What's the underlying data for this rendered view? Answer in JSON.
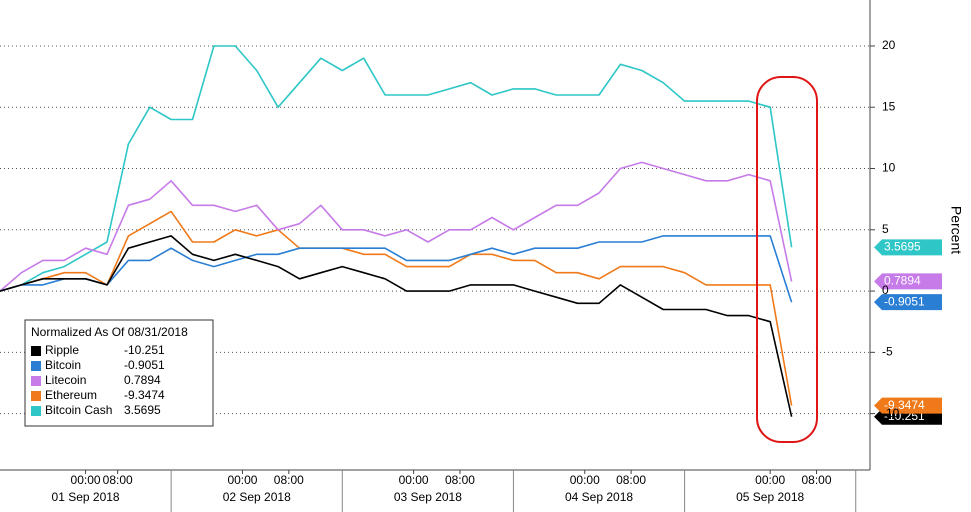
{
  "chart_data": {
    "type": "line",
    "y_label": "Percent",
    "legend_title": "Normalized As Of 08/31/2018",
    "x": [
      0,
      3,
      6,
      9,
      12,
      15,
      18,
      21,
      24,
      27,
      30,
      33,
      36,
      39,
      42,
      45,
      48,
      51,
      54,
      57,
      60,
      63,
      66,
      69,
      72,
      75,
      78,
      81,
      84,
      87,
      90,
      93,
      96,
      99,
      102,
      105,
      108,
      111
    ],
    "xlim": [
      0,
      122
    ],
    "xticks": [
      {
        "value": 12,
        "label": "00:00"
      },
      {
        "value": 16.5,
        "label": "08:00"
      },
      {
        "value": 34,
        "label": "00:00"
      },
      {
        "value": 40.5,
        "label": "08:00"
      },
      {
        "value": 58,
        "label": "00:00"
      },
      {
        "value": 64.5,
        "label": "08:00"
      },
      {
        "value": 82,
        "label": "00:00"
      },
      {
        "value": 88.5,
        "label": "08:00"
      },
      {
        "value": 108,
        "label": "00:00"
      },
      {
        "value": 114.5,
        "label": "08:00"
      }
    ],
    "date_labels": [
      "01 Sep 2018",
      "02 Sep 2018",
      "03 Sep 2018",
      "04 Sep 2018",
      "05 Sep 2018"
    ],
    "ylim": [
      -14.6,
      23.75
    ],
    "yticks": [
      -10,
      -5,
      0,
      5,
      10,
      15,
      20
    ],
    "grid": true,
    "legend": "lower left",
    "series": [
      {
        "name": "Ripple",
        "color": "#000000",
        "values": [
          0,
          0.5,
          1,
          1,
          1,
          0.5,
          3.5,
          4,
          4.5,
          3,
          2.5,
          3,
          2.5,
          2,
          1,
          1.5,
          2,
          1.5,
          1,
          0,
          0,
          0,
          0.5,
          0.5,
          0.5,
          0,
          -0.5,
          -1,
          -1,
          0.5,
          -0.5,
          -1.5,
          -1.5,
          -1.5,
          -2,
          -2,
          -2.5,
          -10.251
        ]
      },
      {
        "name": "Bitcoin",
        "color": "#2a7fd4",
        "values": [
          0,
          0.5,
          0.5,
          1,
          1,
          0.5,
          2.5,
          2.5,
          3.5,
          2.5,
          2,
          2.5,
          3,
          3,
          3.5,
          3.5,
          3.5,
          3.5,
          3.5,
          2.5,
          2.5,
          2.5,
          3,
          3.5,
          3,
          3.5,
          3.5,
          3.5,
          4,
          4,
          4,
          4.5,
          4.5,
          4.5,
          4.5,
          4.5,
          4.5,
          -0.9051
        ]
      },
      {
        "name": "Litecoin",
        "color": "#c77be8",
        "values": [
          0,
          1.5,
          2.5,
          2.5,
          3.5,
          3,
          7,
          7.5,
          9,
          7,
          7,
          6.5,
          7,
          5,
          5.5,
          7,
          5,
          5,
          4.5,
          5,
          4,
          5,
          5,
          6,
          5,
          6,
          7,
          7,
          8,
          10,
          10.5,
          10,
          9.5,
          9,
          9,
          9.5,
          9,
          0.7894
        ]
      },
      {
        "name": "Ethereum",
        "color": "#f07a1a",
        "values": [
          0,
          0.5,
          1,
          1.5,
          1.5,
          0.5,
          4.5,
          5.5,
          6.5,
          4,
          4,
          5,
          4.5,
          5,
          3.5,
          3.5,
          3.5,
          3,
          3,
          2,
          2,
          2,
          3,
          3,
          2.5,
          2.5,
          1.5,
          1.5,
          1,
          2,
          2,
          2,
          1.5,
          0.5,
          0.5,
          0.5,
          0.5,
          -9.3474
        ]
      },
      {
        "name": "Bitcoin Cash",
        "color": "#2ec6c6",
        "values": [
          0,
          0.5,
          1.5,
          2,
          3,
          4,
          12,
          15,
          14,
          14,
          20,
          20,
          18,
          15,
          17,
          19,
          18,
          19,
          16,
          16,
          16,
          16.5,
          17,
          16,
          16.5,
          16.5,
          16,
          16,
          16,
          18.5,
          18,
          17,
          15.5,
          15.5,
          15.5,
          15.5,
          15,
          3.5695
        ]
      }
    ]
  }
}
